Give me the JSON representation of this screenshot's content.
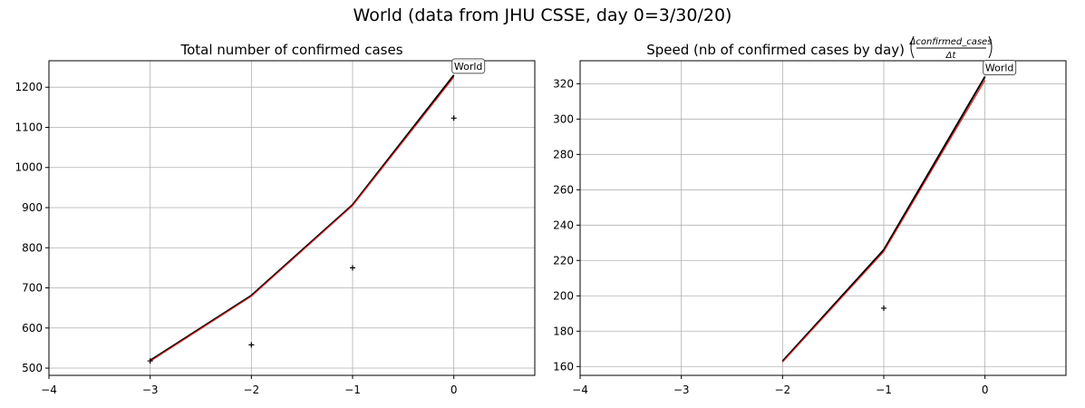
{
  "figure": {
    "suptitle": "World (data from JHU CSSE, day 0=3/30/20)"
  },
  "chart_data": [
    {
      "type": "line",
      "title": "Total number of confirmed cases",
      "xlabel": "",
      "ylabel": "",
      "xlim": [
        -4,
        0.8
      ],
      "ylim": [
        482,
        1266
      ],
      "xticks": [
        -4,
        -3,
        -2,
        -1,
        0
      ],
      "yticks": [
        500,
        600,
        700,
        800,
        900,
        1000,
        1100,
        1200
      ],
      "grid": true,
      "annotation": "World",
      "series": [
        {
          "kind": "line",
          "color": "#000000",
          "x": [
            -3,
            -2,
            -1,
            0
          ],
          "y": [
            519,
            681,
            907,
            1230
          ]
        },
        {
          "kind": "line",
          "color": "#d62728",
          "x": [
            -3,
            -2,
            -1,
            0
          ],
          "y": [
            517,
            679,
            905,
            1225
          ]
        },
        {
          "kind": "points",
          "color": "#000000",
          "x": [
            -3,
            -2,
            -1,
            0
          ],
          "y": [
            518,
            558,
            750,
            1123
          ]
        }
      ]
    },
    {
      "type": "line",
      "title": "Speed (nb of confirmed cases by day)",
      "title_fraction_numerator": "Δconfirmed_cases",
      "title_fraction_denominator": "Δt",
      "xlabel": "",
      "ylabel": "",
      "xlim": [
        -4,
        0.8
      ],
      "ylim": [
        155,
        333
      ],
      "xticks": [
        -4,
        -3,
        -2,
        -1,
        0
      ],
      "yticks": [
        160,
        180,
        200,
        220,
        240,
        260,
        280,
        300,
        320
      ],
      "grid": true,
      "annotation": "World",
      "series": [
        {
          "kind": "line",
          "color": "#000000",
          "x": [
            -2,
            -1,
            0
          ],
          "y": [
            163,
            226,
            324
          ]
        },
        {
          "kind": "line",
          "color": "#d62728",
          "x": [
            -2,
            -1,
            0
          ],
          "y": [
            162.5,
            225,
            322
          ]
        },
        {
          "kind": "points",
          "color": "#000000",
          "x": [
            -1
          ],
          "y": [
            193
          ]
        }
      ]
    }
  ]
}
